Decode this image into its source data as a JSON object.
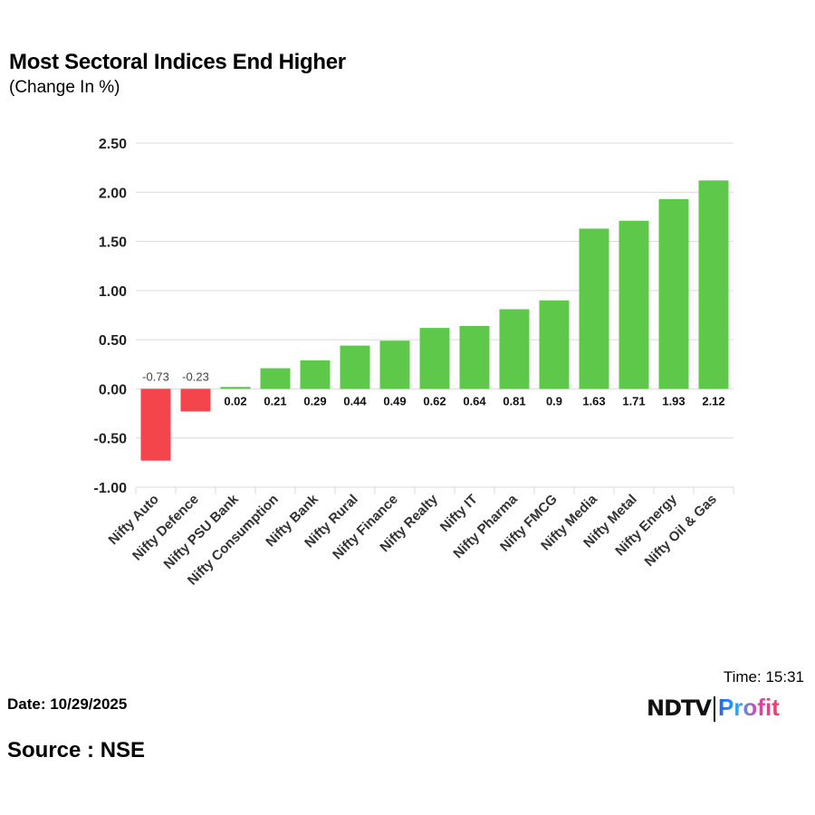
{
  "title": "Most Sectoral Indices End Higher",
  "subtitle": "(Change In %)",
  "footer": {
    "date": "Date: 10/29/2025",
    "source": "Source : NSE",
    "time": "Time: 15:31"
  },
  "logo": {
    "ndtv": "NDTV",
    "profit": "Profit"
  },
  "colors": {
    "positive": "#5ec84a",
    "negative": "#f4444c",
    "grid": "#d9d9d9"
  },
  "chart_data": {
    "type": "bar",
    "title": "Most Sectoral Indices End Higher",
    "subtitle": "(Change In %)",
    "categories": [
      "Nifty Auto",
      "Nifty Defence",
      "Nifty PSU Bank",
      "Nifty Consumption",
      "Nifty Bank",
      "Nifty Rural",
      "Nifty Finance",
      "Nifty Realty",
      "Nifty IT",
      "Nifty Pharma",
      "Nifty FMCG",
      "Nifty Media",
      "Nifty Metal",
      "Nifty Energy",
      "Nifty Oil & Gas"
    ],
    "values": [
      -0.73,
      -0.23,
      0.02,
      0.21,
      0.29,
      0.44,
      0.49,
      0.62,
      0.64,
      0.81,
      0.9,
      1.63,
      1.71,
      1.93,
      2.12
    ],
    "data_labels": [
      "-0.73",
      "-0.23",
      "0.02",
      "0.21",
      "0.29",
      "0.44",
      "0.49",
      "0.62",
      "0.64",
      "0.81",
      "0.9",
      "1.63",
      "1.71",
      "1.93",
      "2.12"
    ],
    "ylim": [
      -1.0,
      2.5
    ],
    "yticks": [
      "2.50",
      "2.00",
      "1.50",
      "1.00",
      "0.50",
      "0.00",
      "-0.50",
      "-1.00"
    ],
    "grid": true,
    "legend": "none"
  }
}
